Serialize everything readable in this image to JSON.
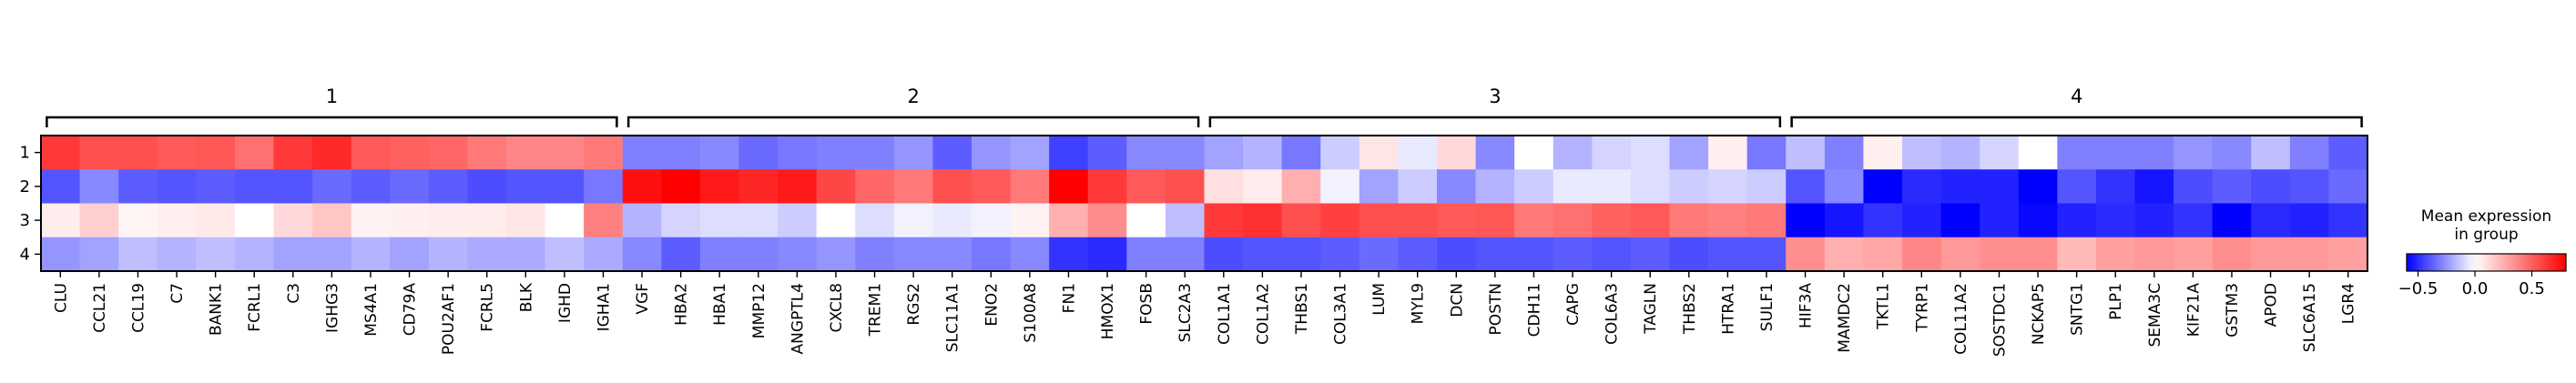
{
  "chart_data": {
    "type": "heatmap",
    "title": "",
    "xlabel": "",
    "ylabel": "",
    "groups": [
      {
        "label": "1",
        "genes": [
          "CLU",
          "CCL21",
          "CCL19",
          "C7",
          "BANK1",
          "FCRL1",
          "C3",
          "IGHG3",
          "MS4A1",
          "CD79A",
          "POU2AF1",
          "FCRL5",
          "BLK",
          "IGHD",
          "IGHA1"
        ]
      },
      {
        "label": "2",
        "genes": [
          "VGF",
          "HBA2",
          "HBA1",
          "MMP12",
          "ANGPTL4",
          "CXCL8",
          "TREM1",
          "RGS2",
          "SLC11A1",
          "ENO2",
          "S100A8",
          "FN1",
          "HMOX1",
          "FOSB",
          "SLC2A3"
        ]
      },
      {
        "label": "3",
        "genes": [
          "COL1A1",
          "COL1A2",
          "THBS1",
          "COL3A1",
          "LUM",
          "MYL9",
          "DCN",
          "POSTN",
          "CDH11",
          "CAPG",
          "COL6A3",
          "TAGLN",
          "THBS2",
          "HTRA1",
          "SULF1"
        ]
      },
      {
        "label": "4",
        "genes": [
          "HIF3A",
          "MAMDC2",
          "TKTL1",
          "TYRP1",
          "COL11A2",
          "SOSTDC1",
          "NCKAP5",
          "SNTG1",
          "PLP1",
          "SEMA3C",
          "KIF21A",
          "GSTM3",
          "APOD",
          "SLC6A15",
          "LGR4"
        ]
      }
    ],
    "rows": [
      "1",
      "2",
      "3",
      "4"
    ],
    "values": [
      [
        0.62,
        0.55,
        0.55,
        0.52,
        0.53,
        0.45,
        0.62,
        0.67,
        0.52,
        0.5,
        0.48,
        0.42,
        0.38,
        0.38,
        0.42,
        -0.3,
        -0.3,
        -0.28,
        -0.35,
        -0.32,
        -0.3,
        -0.3,
        -0.25,
        -0.38,
        -0.25,
        -0.22,
        -0.45,
        -0.38,
        -0.28,
        -0.28,
        -0.22,
        -0.18,
        -0.32,
        -0.12,
        0.08,
        -0.05,
        0.12,
        -0.28,
        0.0,
        -0.18,
        -0.1,
        -0.08,
        -0.22,
        0.05,
        -0.32,
        -0.15,
        -0.3,
        0.05,
        -0.15,
        -0.18,
        -0.1,
        0.0,
        -0.3,
        -0.3,
        -0.3,
        -0.25,
        -0.28,
        -0.15,
        -0.3,
        -0.38
      ],
      [
        -0.4,
        -0.28,
        -0.38,
        -0.4,
        -0.38,
        -0.4,
        -0.4,
        -0.35,
        -0.38,
        -0.35,
        -0.38,
        -0.42,
        -0.4,
        -0.4,
        -0.32,
        0.75,
        0.8,
        0.72,
        0.68,
        0.72,
        0.58,
        0.48,
        0.42,
        0.55,
        0.52,
        0.42,
        0.8,
        0.62,
        0.52,
        0.55,
        0.1,
        0.06,
        0.25,
        -0.03,
        -0.22,
        -0.12,
        -0.28,
        -0.18,
        -0.12,
        -0.05,
        -0.05,
        -0.08,
        -0.12,
        -0.1,
        -0.12,
        -0.4,
        -0.28,
        -0.78,
        -0.5,
        -0.52,
        -0.52,
        -0.6,
        -0.4,
        -0.48,
        -0.55,
        -0.42,
        -0.38,
        -0.42,
        -0.4,
        -0.35
      ],
      [
        0.06,
        0.15,
        0.03,
        0.05,
        0.07,
        0.0,
        0.12,
        0.18,
        0.04,
        0.05,
        0.06,
        0.06,
        0.08,
        0.0,
        0.4,
        -0.18,
        -0.1,
        -0.08,
        -0.08,
        -0.12,
        0.0,
        -0.08,
        -0.03,
        -0.05,
        -0.03,
        0.04,
        0.25,
        0.36,
        0.0,
        -0.15,
        0.62,
        0.65,
        0.55,
        0.6,
        0.55,
        0.55,
        0.52,
        0.53,
        0.42,
        0.45,
        0.5,
        0.52,
        0.42,
        0.4,
        0.42,
        -0.65,
        -0.55,
        -0.48,
        -0.52,
        -0.62,
        -0.52,
        -0.58,
        -0.52,
        -0.5,
        -0.52,
        -0.48,
        -0.7,
        -0.5,
        -0.52,
        -0.48
      ],
      [
        -0.25,
        -0.22,
        -0.15,
        -0.18,
        -0.15,
        -0.18,
        -0.22,
        -0.22,
        -0.18,
        -0.22,
        -0.18,
        -0.2,
        -0.2,
        -0.15,
        -0.2,
        -0.28,
        -0.38,
        -0.3,
        -0.3,
        -0.28,
        -0.25,
        -0.3,
        -0.28,
        -0.28,
        -0.32,
        -0.28,
        -0.48,
        -0.5,
        -0.3,
        -0.3,
        -0.42,
        -0.4,
        -0.4,
        -0.38,
        -0.35,
        -0.38,
        -0.42,
        -0.4,
        -0.4,
        -0.38,
        -0.4,
        -0.38,
        -0.42,
        -0.4,
        -0.4,
        0.35,
        0.25,
        0.28,
        0.38,
        0.32,
        0.35,
        0.35,
        0.22,
        0.3,
        0.32,
        0.3,
        0.35,
        0.32,
        0.32,
        0.3
      ]
    ],
    "colorbar": {
      "title": "Mean expression\nin group",
      "min": -0.6,
      "max": 0.8,
      "ticks": [
        -0.5,
        0.0,
        0.5
      ],
      "tick_labels": [
        "−0.5",
        "0.0",
        "0.5"
      ],
      "colormap": "bwr"
    }
  }
}
